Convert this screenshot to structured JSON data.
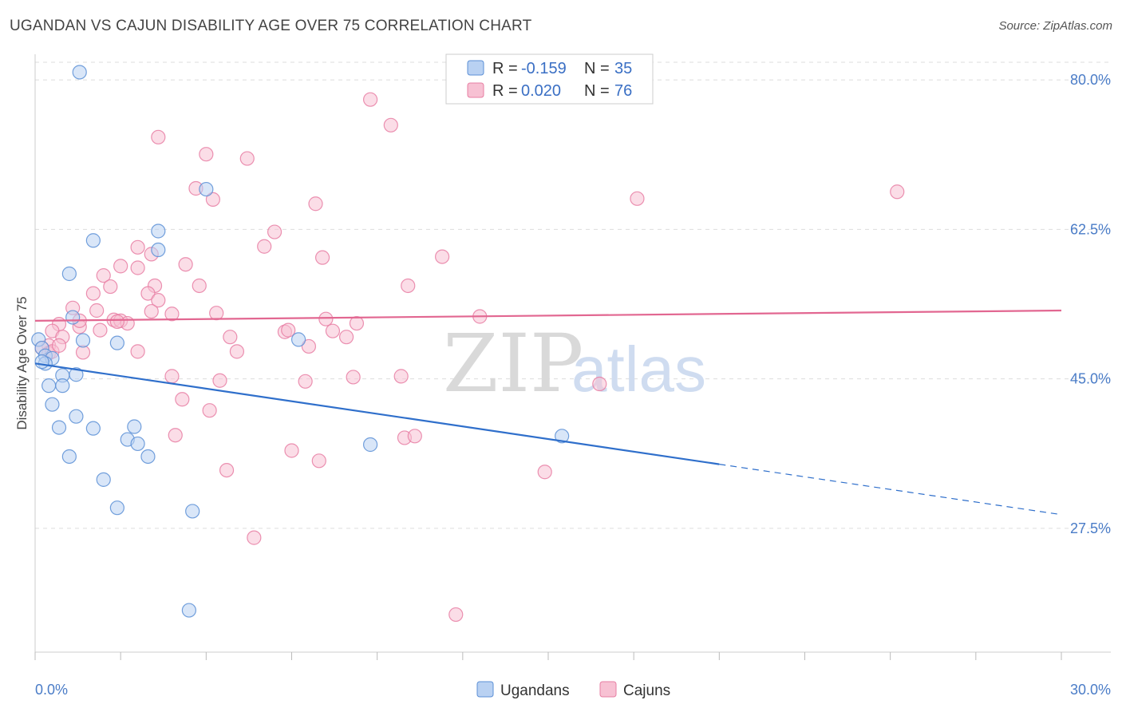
{
  "title": "UGANDAN VS CAJUN DISABILITY AGE OVER 75 CORRELATION CHART",
  "source": "Source: ZipAtlas.com",
  "watermark": {
    "zip": "ZIP",
    "atlas": "atlas"
  },
  "colors": {
    "ugandans": "#5b8fd6",
    "ugandans_fill": "#b9d1f2",
    "ugandans_line": "#2f6fcb",
    "cajuns": "#e77ea3",
    "cajuns_fill": "#f7c1d3",
    "cajuns_line": "#e26791",
    "tick": "#4a7cc7"
  },
  "legend": {
    "rows": [
      {
        "r_label": "R = ",
        "r_value": "-0.159",
        "n_label": "N = ",
        "n_value": "35"
      },
      {
        "r_label": "R = ",
        "r_value": "0.020",
        "n_label": "N = ",
        "n_value": "76"
      }
    ]
  },
  "bottom_legend": [
    "Ugandans",
    "Cajuns"
  ],
  "chart_data": {
    "type": "scatter",
    "xlabel": "",
    "ylabel": "Disability Age Over 75",
    "xlim": [
      0,
      30
    ],
    "ylim": [
      13,
      83
    ],
    "x_tick_labels": [
      "0.0%",
      "30.0%"
    ],
    "y_ticks": [
      27.5,
      45.0,
      62.5,
      80.0
    ],
    "y_tick_labels": [
      "27.5%",
      "45.0%",
      "62.5%",
      "80.0%"
    ],
    "grid": true,
    "series": [
      {
        "name": "Ugandans",
        "points": [
          [
            1.3,
            80.9
          ],
          [
            5.0,
            67.2
          ],
          [
            3.6,
            62.3
          ],
          [
            1.7,
            61.2
          ],
          [
            3.6,
            60.1
          ],
          [
            1.0,
            57.3
          ],
          [
            1.1,
            52.2
          ],
          [
            0.1,
            49.6
          ],
          [
            1.4,
            49.5
          ],
          [
            2.4,
            49.2
          ],
          [
            7.7,
            49.6
          ],
          [
            0.2,
            48.6
          ],
          [
            0.3,
            47.7
          ],
          [
            0.5,
            47.4
          ],
          [
            0.3,
            46.8
          ],
          [
            1.2,
            45.5
          ],
          [
            0.8,
            45.4
          ],
          [
            0.4,
            44.2
          ],
          [
            0.8,
            44.2
          ],
          [
            0.5,
            42.0
          ],
          [
            1.2,
            40.6
          ],
          [
            0.7,
            39.3
          ],
          [
            1.7,
            39.2
          ],
          [
            2.9,
            39.4
          ],
          [
            2.7,
            37.9
          ],
          [
            3.0,
            37.4
          ],
          [
            9.8,
            37.3
          ],
          [
            15.4,
            38.3
          ],
          [
            1.0,
            35.9
          ],
          [
            3.3,
            35.9
          ],
          [
            2.0,
            33.2
          ],
          [
            2.4,
            29.9
          ],
          [
            4.6,
            29.5
          ],
          [
            4.5,
            17.9
          ],
          [
            0.2,
            47.0
          ]
        ]
      },
      {
        "name": "Cajuns",
        "points": [
          [
            9.8,
            77.7
          ],
          [
            10.4,
            74.7
          ],
          [
            3.6,
            73.3
          ],
          [
            5.0,
            71.3
          ],
          [
            6.2,
            70.8
          ],
          [
            4.7,
            67.3
          ],
          [
            5.2,
            66.0
          ],
          [
            8.2,
            65.5
          ],
          [
            17.6,
            66.1
          ],
          [
            25.2,
            66.9
          ],
          [
            7.0,
            62.2
          ],
          [
            6.7,
            60.5
          ],
          [
            3.0,
            60.4
          ],
          [
            3.4,
            59.6
          ],
          [
            8.4,
            59.2
          ],
          [
            11.9,
            59.3
          ],
          [
            2.5,
            58.2
          ],
          [
            3.0,
            58.0
          ],
          [
            4.4,
            58.4
          ],
          [
            2.0,
            57.1
          ],
          [
            2.2,
            55.8
          ],
          [
            3.5,
            55.9
          ],
          [
            4.8,
            55.9
          ],
          [
            10.9,
            55.9
          ],
          [
            3.3,
            55.0
          ],
          [
            1.7,
            55.0
          ],
          [
            3.6,
            54.2
          ],
          [
            1.1,
            53.3
          ],
          [
            1.8,
            53.0
          ],
          [
            3.4,
            52.9
          ],
          [
            4.0,
            52.6
          ],
          [
            5.3,
            52.7
          ],
          [
            2.3,
            51.9
          ],
          [
            2.5,
            51.8
          ],
          [
            8.5,
            52.0
          ],
          [
            13.0,
            52.3
          ],
          [
            2.7,
            51.5
          ],
          [
            0.7,
            51.4
          ],
          [
            9.4,
            51.5
          ],
          [
            0.5,
            50.6
          ],
          [
            1.3,
            51.1
          ],
          [
            1.9,
            50.7
          ],
          [
            7.3,
            50.5
          ],
          [
            8.7,
            50.6
          ],
          [
            0.8,
            49.9
          ],
          [
            5.7,
            49.9
          ],
          [
            9.1,
            49.9
          ],
          [
            0.4,
            48.9
          ],
          [
            0.2,
            48.6
          ],
          [
            8.0,
            48.8
          ],
          [
            0.4,
            48.0
          ],
          [
            0.5,
            48.2
          ],
          [
            1.4,
            48.1
          ],
          [
            3.0,
            48.2
          ],
          [
            5.9,
            48.2
          ],
          [
            4.0,
            45.3
          ],
          [
            5.4,
            44.8
          ],
          [
            7.9,
            44.7
          ],
          [
            9.3,
            45.2
          ],
          [
            10.7,
            45.3
          ],
          [
            16.5,
            44.4
          ],
          [
            4.3,
            42.6
          ],
          [
            5.1,
            41.3
          ],
          [
            4.1,
            38.4
          ],
          [
            10.8,
            38.1
          ],
          [
            11.1,
            38.3
          ],
          [
            7.5,
            36.6
          ],
          [
            8.3,
            35.4
          ],
          [
            5.6,
            34.3
          ],
          [
            14.9,
            34.1
          ],
          [
            6.4,
            26.4
          ],
          [
            12.3,
            17.4
          ],
          [
            7.4,
            50.7
          ],
          [
            1.3,
            51.8
          ],
          [
            0.7,
            48.9
          ],
          [
            2.4,
            51.7
          ]
        ]
      }
    ],
    "trend_lines": [
      {
        "name": "Ugandans",
        "x_solid": [
          0,
          20
        ],
        "y_solid": [
          46.8,
          35.0
        ],
        "x_dash": [
          20,
          30
        ],
        "y_dash": [
          35.0,
          29.1
        ]
      },
      {
        "name": "Cajuns",
        "x": [
          0,
          30
        ],
        "y": [
          51.8,
          53.0
        ]
      }
    ]
  }
}
